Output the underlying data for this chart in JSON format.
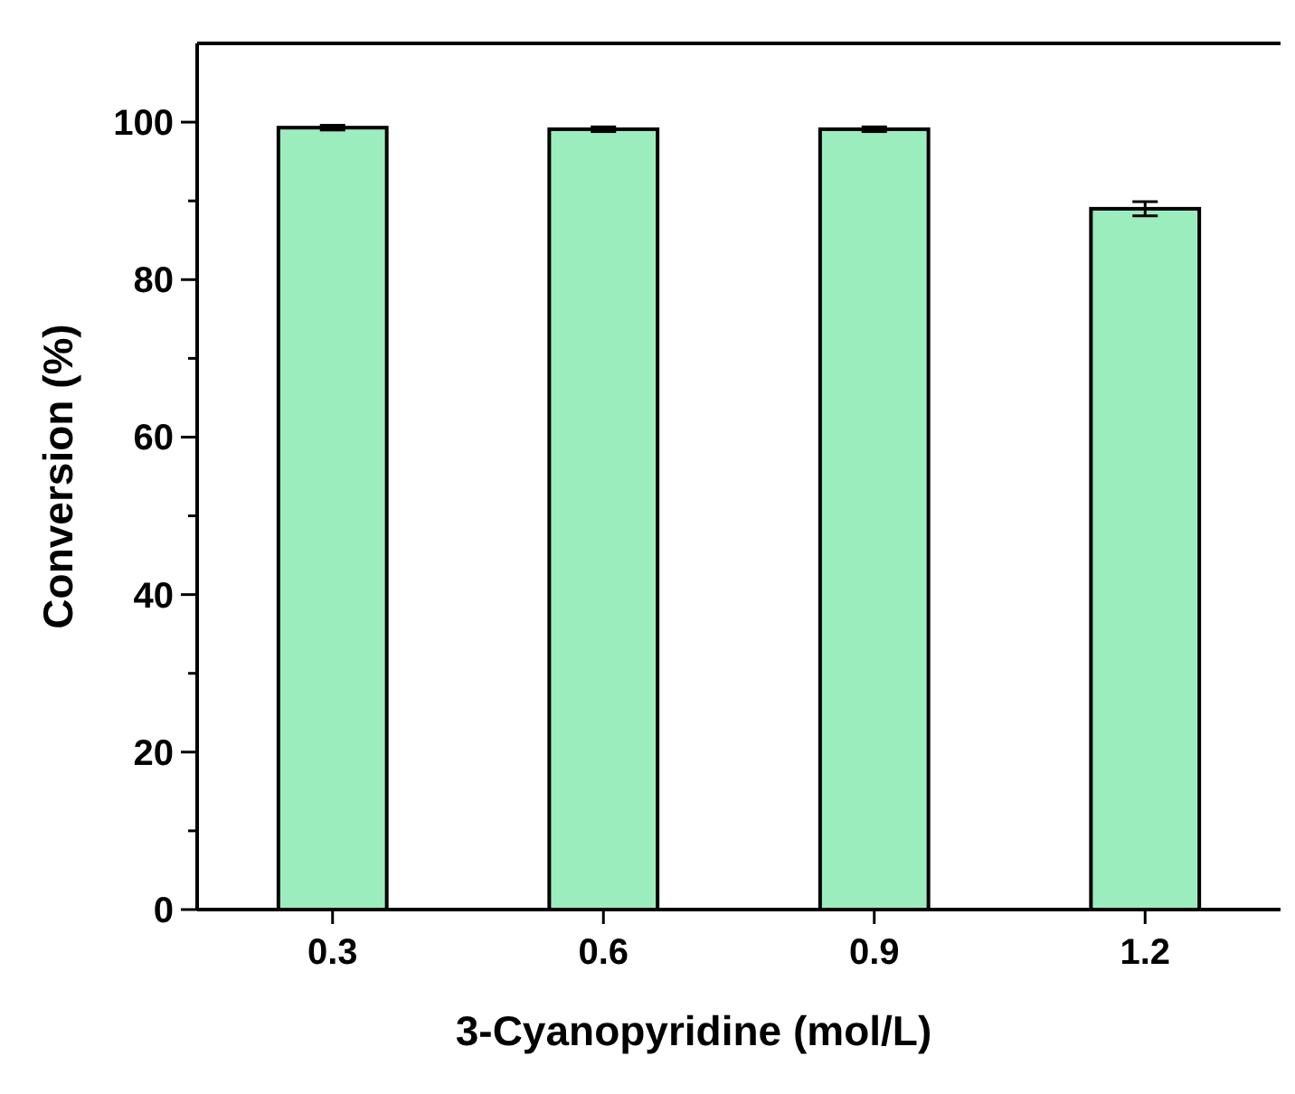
{
  "chart_data": {
    "type": "bar",
    "xlabel": "3-Cyanopyridine (mol/L)",
    "ylabel": "Conversion (%)",
    "categories": [
      "0.3",
      "0.6",
      "0.9",
      "1.2"
    ],
    "values": [
      99.3,
      99.1,
      99.1,
      89.0
    ],
    "errors": [
      0.3,
      0.3,
      0.3,
      0.9
    ],
    "color": "#9bedbd",
    "ylim": [
      0,
      110
    ],
    "yticks": [
      0,
      {
        "value": 10,
        "label": null
      },
      20,
      {
        "value": 30,
        "label": null
      },
      40,
      {
        "value": 50,
        "label": null
      },
      60,
      {
        "value": 70,
        "label": null
      },
      80,
      {
        "value": 90,
        "label": null
      },
      100
    ],
    "grid": false
  }
}
